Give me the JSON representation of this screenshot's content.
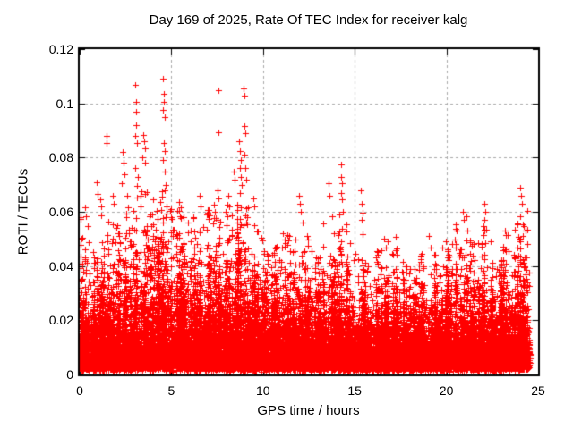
{
  "chart_data": {
    "type": "scatter",
    "title": "Day 169 of 2025, Rate Of TEC Index for receiver kalg",
    "xlabel": "GPS time / hours",
    "ylabel": "ROTI / TECUs",
    "xlim": [
      0,
      25
    ],
    "ylim": [
      0,
      0.12
    ],
    "xticks": [
      {
        "v": 0,
        "label": "0"
      },
      {
        "v": 5,
        "label": "5"
      },
      {
        "v": 10,
        "label": "10"
      },
      {
        "v": 15,
        "label": "15"
      },
      {
        "v": 20,
        "label": "20"
      },
      {
        "v": 25,
        "label": "25"
      }
    ],
    "yticks": [
      {
        "v": 0,
        "label": "0"
      },
      {
        "v": 0.02,
        "label": "0.02"
      },
      {
        "v": 0.04,
        "label": "0.04"
      },
      {
        "v": 0.06,
        "label": "0.06"
      },
      {
        "v": 0.08,
        "label": "0.08"
      },
      {
        "v": 0.1,
        "label": "0.1"
      },
      {
        "v": 0.12,
        "label": "0.12"
      }
    ],
    "grid": true,
    "legend": "none",
    "marker": "plus",
    "marker_color": "#ff0000",
    "grid_color": "#a8a8a8",
    "axis_color": "#000000",
    "data_hours_range": [
      0,
      24.55
    ],
    "point_cloud_model": {
      "seed": 169,
      "points_per_bin": 420,
      "bin_width_hours": 0.5,
      "last_bin_width_hours": 0.55,
      "min_value": 0.001,
      "dense_top_by_bin": [
        0.03,
        0.028,
        0.03,
        0.032,
        0.033,
        0.034,
        0.035,
        0.038,
        0.044,
        0.042,
        0.038,
        0.035,
        0.034,
        0.035,
        0.035,
        0.035,
        0.035,
        0.038,
        0.036,
        0.032,
        0.03,
        0.028,
        0.028,
        0.028,
        0.028,
        0.026,
        0.026,
        0.028,
        0.028,
        0.026,
        0.026,
        0.024,
        0.024,
        0.024,
        0.026,
        0.024,
        0.022,
        0.024,
        0.026,
        0.026,
        0.028,
        0.028,
        0.028,
        0.026,
        0.028,
        0.028,
        0.028,
        0.03,
        0.03
      ],
      "cap_by_bin": [
        0.058,
        0.054,
        0.062,
        0.058,
        0.06,
        0.064,
        0.07,
        0.068,
        0.072,
        0.068,
        0.064,
        0.058,
        0.06,
        0.062,
        0.062,
        0.06,
        0.064,
        0.068,
        0.066,
        0.056,
        0.05,
        0.047,
        0.052,
        0.05,
        0.055,
        0.046,
        0.056,
        0.06,
        0.062,
        0.058,
        0.056,
        0.05,
        0.046,
        0.052,
        0.048,
        0.042,
        0.042,
        0.046,
        0.05,
        0.048,
        0.052,
        0.056,
        0.054,
        0.05,
        0.056,
        0.05,
        0.052,
        0.056,
        0.062
      ]
    },
    "outlier_points": [
      [
        0.3,
        0.0617
      ],
      [
        0.34,
        0.0585
      ],
      [
        0.45,
        0.0548
      ],
      [
        0.95,
        0.071
      ],
      [
        1.0,
        0.0665
      ],
      [
        1.1,
        0.0645
      ],
      [
        1.15,
        0.062
      ],
      [
        1.45,
        0.088
      ],
      [
        1.47,
        0.0855
      ],
      [
        1.8,
        0.066
      ],
      [
        1.85,
        0.063
      ],
      [
        2.35,
        0.082
      ],
      [
        2.4,
        0.078
      ],
      [
        2.45,
        0.074
      ],
      [
        2.3,
        0.0705
      ],
      [
        2.6,
        0.066
      ],
      [
        2.65,
        0.0615
      ],
      [
        3.05,
        0.1068
      ],
      [
        3.08,
        0.1005
      ],
      [
        3.06,
        0.097
      ],
      [
        3.1,
        0.092
      ],
      [
        3.04,
        0.088
      ],
      [
        3.12,
        0.0855
      ],
      [
        3.02,
        0.076
      ],
      [
        3.15,
        0.073
      ],
      [
        3.45,
        0.0885
      ],
      [
        3.5,
        0.086
      ],
      [
        3.55,
        0.0835
      ],
      [
        3.4,
        0.08
      ],
      [
        3.58,
        0.078
      ],
      [
        4.55,
        0.109
      ],
      [
        4.57,
        0.1035
      ],
      [
        4.6,
        0.1005
      ],
      [
        4.56,
        0.0975
      ],
      [
        4.62,
        0.095
      ],
      [
        4.58,
        0.0855
      ],
      [
        4.64,
        0.0825
      ],
      [
        4.53,
        0.079
      ],
      [
        4.66,
        0.075
      ],
      [
        4.68,
        0.07
      ],
      [
        4.5,
        0.0655
      ],
      [
        4.72,
        0.062
      ],
      [
        5.0,
        0.061
      ],
      [
        5.05,
        0.0575
      ],
      [
        5.9,
        0.056
      ],
      [
        6.2,
        0.058
      ],
      [
        6.55,
        0.066
      ],
      [
        6.58,
        0.062
      ],
      [
        7.3,
        0.0625
      ],
      [
        7.35,
        0.06
      ],
      [
        7.55,
        0.105
      ],
      [
        7.56,
        0.0892
      ],
      [
        7.52,
        0.068
      ],
      [
        7.58,
        0.065
      ],
      [
        8.1,
        0.066
      ],
      [
        8.15,
        0.062
      ],
      [
        8.4,
        0.075
      ],
      [
        8.45,
        0.072
      ],
      [
        8.7,
        0.086
      ],
      [
        8.74,
        0.0825
      ],
      [
        8.78,
        0.079
      ],
      [
        8.72,
        0.076
      ],
      [
        8.8,
        0.073
      ],
      [
        8.85,
        0.07
      ],
      [
        8.76,
        0.067
      ],
      [
        8.95,
        0.1055
      ],
      [
        8.97,
        0.103
      ],
      [
        9.0,
        0.0915
      ],
      [
        9.02,
        0.089
      ],
      [
        8.98,
        0.081
      ],
      [
        9.05,
        0.076
      ],
      [
        9.08,
        0.072
      ],
      [
        9.45,
        0.065
      ],
      [
        9.5,
        0.062
      ],
      [
        10.75,
        0.047
      ],
      [
        11.1,
        0.052
      ],
      [
        11.95,
        0.066
      ],
      [
        12.0,
        0.063
      ],
      [
        12.05,
        0.06
      ],
      [
        12.15,
        0.056
      ],
      [
        13.55,
        0.0705
      ],
      [
        13.6,
        0.066
      ],
      [
        14.25,
        0.0775
      ],
      [
        14.28,
        0.073
      ],
      [
        14.3,
        0.0705
      ],
      [
        14.26,
        0.067
      ],
      [
        14.32,
        0.0645
      ],
      [
        14.35,
        0.06
      ],
      [
        15.35,
        0.068
      ],
      [
        15.4,
        0.063
      ],
      [
        15.42,
        0.0597
      ],
      [
        15.38,
        0.057
      ],
      [
        16.6,
        0.05
      ],
      [
        17.25,
        0.0508
      ],
      [
        17.3,
        0.0465
      ],
      [
        19.05,
        0.051
      ],
      [
        19.95,
        0.049
      ],
      [
        20.3,
        0.048
      ],
      [
        20.9,
        0.06
      ],
      [
        20.95,
        0.057
      ],
      [
        21.1,
        0.0585
      ],
      [
        21.15,
        0.053
      ],
      [
        22.05,
        0.063
      ],
      [
        22.1,
        0.06
      ],
      [
        22.08,
        0.057
      ],
      [
        22.15,
        0.0535
      ],
      [
        23.2,
        0.053
      ],
      [
        23.35,
        0.0515
      ],
      [
        24.0,
        0.069
      ],
      [
        24.05,
        0.066
      ],
      [
        24.1,
        0.063
      ],
      [
        24.02,
        0.0585
      ],
      [
        24.15,
        0.0555
      ],
      [
        24.3,
        0.053
      ],
      [
        24.4,
        0.048
      ]
    ]
  }
}
